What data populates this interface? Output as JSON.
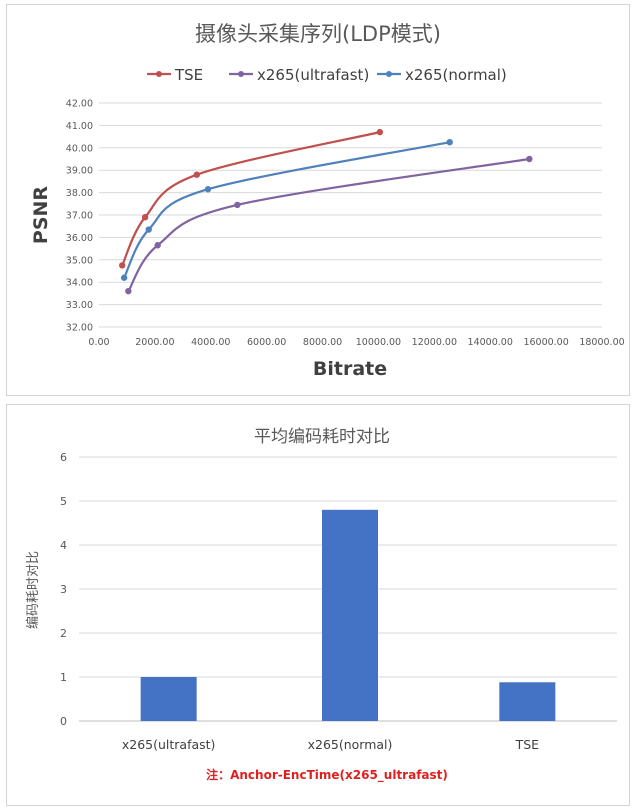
{
  "chart_data": [
    {
      "type": "line",
      "title": "摄像头采集序列(LDP模式)",
      "xlabel": "Bitrate",
      "ylabel": "PSNR",
      "xlim": [
        0,
        18000
      ],
      "ylim": [
        32,
        42
      ],
      "x_ticks": [
        "0.00",
        "2000.00",
        "4000.00",
        "6000.00",
        "8000.00",
        "10000.00",
        "12000.00",
        "14000.00",
        "16000.00",
        "18000.00"
      ],
      "y_ticks": [
        "32.00",
        "33.00",
        "34.00",
        "35.00",
        "36.00",
        "37.00",
        "38.00",
        "39.00",
        "40.00",
        "41.00",
        "42.00"
      ],
      "grid": true,
      "legend": "top",
      "series": [
        {
          "name": "TSE",
          "color": "#c0504d",
          "points": [
            [
              830,
              34.75
            ],
            [
              1650,
              36.9
            ],
            [
              3500,
              38.8
            ],
            [
              10050,
              40.7
            ]
          ]
        },
        {
          "name": "x265(ultrafast)",
          "color": "#8064a2",
          "points": [
            [
              1050,
              33.6
            ],
            [
              2100,
              35.65
            ],
            [
              4950,
              37.45
            ],
            [
              15400,
              39.5
            ]
          ]
        },
        {
          "name": "x265(normal)",
          "color": "#4f81bd",
          "points": [
            [
              900,
              34.2
            ],
            [
              1780,
              36.35
            ],
            [
              3900,
              38.15
            ],
            [
              12550,
              40.25
            ]
          ]
        }
      ]
    },
    {
      "type": "bar",
      "title": "平均编码耗时对比",
      "xlabel": "",
      "ylabel": "编码耗时对比",
      "ylim": [
        0,
        6
      ],
      "y_ticks": [
        "0",
        "1",
        "2",
        "3",
        "4",
        "5",
        "6"
      ],
      "grid": true,
      "color": "#4472c4",
      "categories": [
        "x265(ultrafast)",
        "x265(normal)",
        "TSE"
      ],
      "values": [
        1.0,
        4.8,
        0.88
      ],
      "note": "注：Anchor-EncTime(x265_ultrafast)",
      "note_color": "#e02020"
    }
  ]
}
